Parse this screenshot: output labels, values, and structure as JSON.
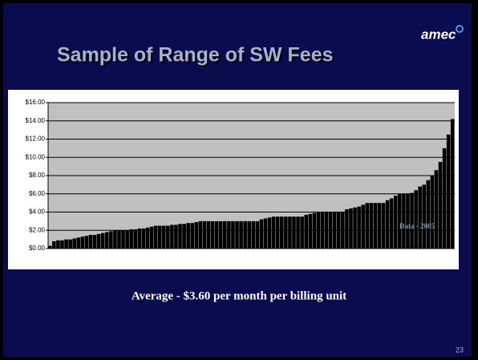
{
  "slide": {
    "title": "Sample of Range of SW Fees",
    "logo": "amec",
    "caption": "Average - $3.60 per month per billing unit",
    "page_number": "23"
  },
  "chart_data": {
    "type": "bar",
    "color": "#000000",
    "plot_background": "#c0c0c0",
    "grid": true,
    "annotation": "Data - 2005",
    "values": [
      0.3,
      0.8,
      0.9,
      0.9,
      1.0,
      1.0,
      1.1,
      1.2,
      1.3,
      1.4,
      1.5,
      1.5,
      1.6,
      1.7,
      1.8,
      1.9,
      2.0,
      2.0,
      2.0,
      2.0,
      2.1,
      2.1,
      2.2,
      2.2,
      2.3,
      2.4,
      2.5,
      2.5,
      2.5,
      2.5,
      2.6,
      2.6,
      2.7,
      2.7,
      2.8,
      2.8,
      2.9,
      3.0,
      3.0,
      3.0,
      3.0,
      3.0,
      3.0,
      3.0,
      3.0,
      3.0,
      3.0,
      3.0,
      3.0,
      3.0,
      3.0,
      3.0,
      3.2,
      3.3,
      3.4,
      3.5,
      3.5,
      3.5,
      3.5,
      3.5,
      3.5,
      3.5,
      3.5,
      3.7,
      3.8,
      3.9,
      4.0,
      4.0,
      4.0,
      4.0,
      4.0,
      4.0,
      4.0,
      4.3,
      4.4,
      4.5,
      4.6,
      4.8,
      5.0,
      5.0,
      5.0,
      5.0,
      5.0,
      5.3,
      5.5,
      5.8,
      6.0,
      6.0,
      6.0,
      6.1,
      6.4,
      6.8,
      7.0,
      7.5,
      8.0,
      8.6,
      9.5,
      11.0,
      12.5,
      14.2
    ],
    "ylim": [
      0,
      16
    ],
    "yticks": [
      {
        "value": 0,
        "label": "$0.00"
      },
      {
        "value": 2,
        "label": "$2.00"
      },
      {
        "value": 4,
        "label": "$4.00"
      },
      {
        "value": 6,
        "label": "$6.00"
      },
      {
        "value": 8,
        "label": "$8.00"
      },
      {
        "value": 10,
        "label": "$10.00"
      },
      {
        "value": 12,
        "label": "$12.00"
      },
      {
        "value": 14,
        "label": "$14.00"
      },
      {
        "value": 16,
        "label": "$16.00"
      }
    ]
  }
}
